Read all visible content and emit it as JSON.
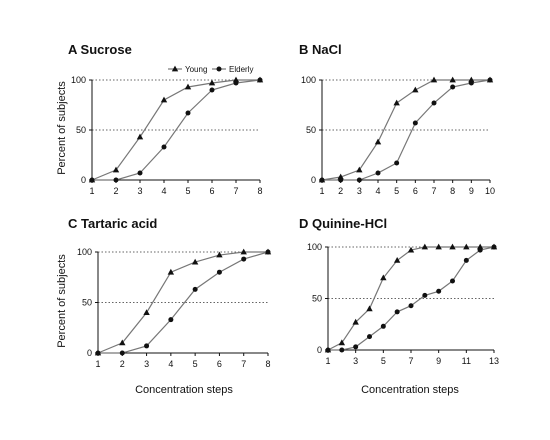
{
  "chart_data": [
    {
      "type": "line",
      "title": "A Sucrose",
      "xlabel": "",
      "ylabel": "Percent of subjects",
      "x": [
        1,
        2,
        3,
        4,
        5,
        6,
        7,
        8
      ],
      "xticks": [
        1,
        2,
        3,
        4,
        5,
        6,
        7,
        8
      ],
      "xlim": [
        1,
        8
      ],
      "yticks": [
        0,
        50,
        100
      ],
      "ylim": [
        0,
        100
      ],
      "dotted_gridlines": [
        50,
        100
      ],
      "legend": "top",
      "series": [
        {
          "name": "Young",
          "marker": "triangle",
          "values": [
            0,
            10,
            43,
            80,
            93,
            97,
            100,
            100
          ]
        },
        {
          "name": "Elderly",
          "marker": "circle",
          "values": [
            0,
            0,
            7,
            33,
            67,
            90,
            97,
            100
          ]
        }
      ]
    },
    {
      "type": "line",
      "title": "B NaCl",
      "xlabel": "",
      "ylabel": "",
      "x": [
        1,
        2,
        3,
        4,
        5,
        6,
        7,
        8,
        9,
        10
      ],
      "xticks": [
        1,
        2,
        3,
        4,
        5,
        6,
        7,
        8,
        9,
        10
      ],
      "xlim": [
        1,
        10
      ],
      "yticks": [
        0,
        50,
        100
      ],
      "ylim": [
        0,
        100
      ],
      "dotted_gridlines": [
        50,
        100
      ],
      "series": [
        {
          "marker": "triangle",
          "values": [
            0,
            3,
            10,
            38,
            77,
            90,
            100,
            100,
            100,
            100
          ]
        },
        {
          "marker": "circle",
          "values": [
            0,
            0,
            0,
            7,
            17,
            57,
            77,
            93,
            97,
            100
          ]
        }
      ]
    },
    {
      "type": "line",
      "title": "C Tartaric acid",
      "xlabel": "Concentration steps",
      "ylabel": "Percent of subjects",
      "x": [
        1,
        2,
        3,
        4,
        5,
        6,
        7,
        8
      ],
      "xticks": [
        1,
        2,
        3,
        4,
        5,
        6,
        7,
        8
      ],
      "xlim": [
        1,
        8
      ],
      "yticks": [
        0,
        50,
        100
      ],
      "ylim": [
        0,
        100
      ],
      "dotted_gridlines": [
        50,
        100
      ],
      "series": [
        {
          "marker": "triangle",
          "values": [
            0,
            10,
            40,
            80,
            90,
            97,
            100,
            100
          ]
        },
        {
          "marker": "circle",
          "values": [
            0,
            0,
            7,
            33,
            63,
            80,
            93,
            100
          ]
        }
      ]
    },
    {
      "type": "line",
      "title": "D Quinine-HCl",
      "xlabel": "Concentration steps",
      "ylabel": "",
      "x": [
        1,
        2,
        3,
        4,
        5,
        6,
        7,
        8,
        9,
        10,
        11,
        12,
        13
      ],
      "xticks": [
        1,
        3,
        5,
        7,
        9,
        11,
        13
      ],
      "xlim": [
        1,
        13
      ],
      "yticks": [
        0,
        50,
        100
      ],
      "ylim": [
        0,
        100
      ],
      "dotted_gridlines": [
        50,
        100
      ],
      "series": [
        {
          "marker": "triangle",
          "values": [
            0,
            7,
            27,
            40,
            70,
            87,
            97,
            100,
            100,
            100,
            100,
            100,
            100
          ]
        },
        {
          "marker": "circle",
          "values": [
            0,
            0,
            3,
            13,
            23,
            37,
            43,
            53,
            57,
            67,
            87,
            97,
            100
          ]
        }
      ]
    }
  ]
}
